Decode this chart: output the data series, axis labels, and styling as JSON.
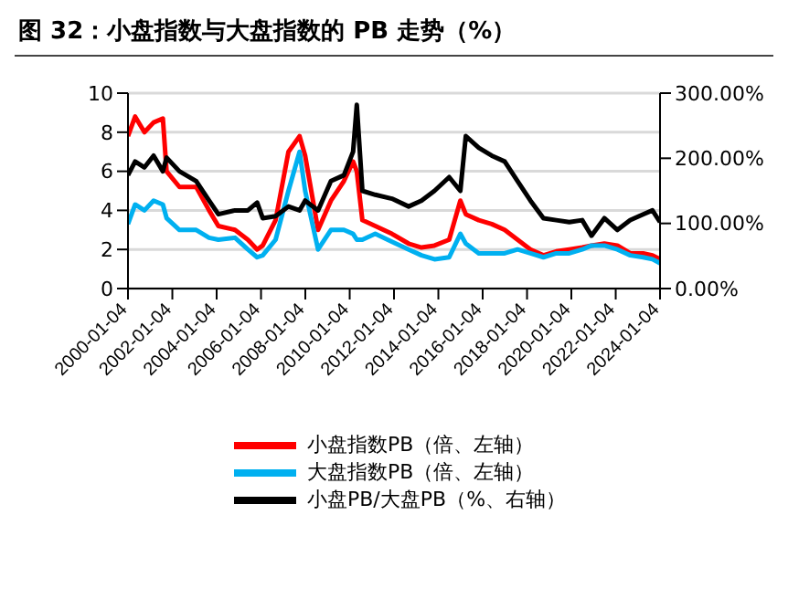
{
  "chart_data": {
    "type": "line",
    "title": "图 32：小盘指数与大盘指数的 PB 走势（%）",
    "x": [
      "2000-01-04",
      "2000-05",
      "2000-10",
      "2001-03",
      "2001-08",
      "2001-10",
      "2002-05",
      "2003-02",
      "2003-09",
      "2004-02",
      "2004-11",
      "2005-06",
      "2005-11",
      "2006-02",
      "2006-09",
      "2007-04",
      "2007-10",
      "2008-01",
      "2008-08",
      "2009-03",
      "2009-10",
      "2010-03",
      "2010-05",
      "2010-08",
      "2011-03",
      "2011-12",
      "2012-09",
      "2013-04",
      "2013-11",
      "2014-07",
      "2015-01",
      "2015-04",
      "2015-11",
      "2016-06",
      "2017-01",
      "2017-08",
      "2018-03",
      "2018-10",
      "2019-05",
      "2019-12",
      "2020-07",
      "2020-12",
      "2021-07",
      "2022-02",
      "2022-09",
      "2023-04",
      "2023-09",
      "2024-01-04"
    ],
    "series": [
      {
        "name": "小盘指数PB（倍、左轴）",
        "color": "#ff0000",
        "values": [
          7.8,
          8.8,
          8.0,
          8.5,
          8.7,
          6.0,
          5.2,
          5.2,
          4.0,
          3.2,
          3.0,
          2.5,
          2.0,
          2.2,
          3.5,
          7.0,
          7.8,
          6.8,
          3.0,
          4.5,
          5.5,
          6.5,
          6.0,
          3.5,
          3.2,
          2.8,
          2.3,
          2.1,
          2.2,
          2.5,
          4.5,
          3.8,
          3.5,
          3.3,
          3.0,
          2.5,
          2.0,
          1.7,
          1.9,
          2.0,
          2.1,
          2.2,
          2.3,
          2.2,
          1.8,
          1.8,
          1.7,
          1.5
        ]
      },
      {
        "name": "大盘指数PB（倍、左轴）",
        "color": "#00b0f0",
        "values": [
          3.3,
          4.3,
          4.0,
          4.5,
          4.3,
          3.6,
          3.0,
          3.0,
          2.6,
          2.5,
          2.6,
          2.0,
          1.6,
          1.7,
          2.5,
          5.0,
          7.0,
          5.0,
          2.0,
          3.0,
          3.0,
          2.8,
          2.5,
          2.5,
          2.8,
          2.4,
          2.0,
          1.7,
          1.5,
          1.6,
          2.8,
          2.3,
          1.8,
          1.8,
          1.8,
          2.0,
          1.8,
          1.6,
          1.8,
          1.8,
          2.0,
          2.2,
          2.2,
          2.0,
          1.7,
          1.6,
          1.5,
          1.3
        ]
      },
      {
        "name": "小盘PB/大盘PB（%、右轴）",
        "color": "#000000",
        "axis": "y2",
        "values": [
          174,
          195,
          186,
          204,
          180,
          201,
          180,
          165,
          135,
          114,
          120,
          120,
          132,
          108,
          111,
          126,
          120,
          135,
          120,
          165,
          174,
          210,
          282,
          150,
          144,
          138,
          126,
          135,
          150,
          171,
          150,
          234,
          216,
          204,
          195,
          165,
          135,
          108,
          105,
          102,
          105,
          81,
          108,
          90,
          105,
          114,
          120,
          102
        ]
      }
    ],
    "xlim": [
      "2000-01-04",
      "2024-01-04"
    ],
    "xticks": [
      "2000-01-04",
      "2002-01-04",
      "2004-01-04",
      "2006-01-04",
      "2008-01-04",
      "2010-01-04",
      "2012-01-04",
      "2014-01-04",
      "2016-01-04",
      "2018-01-04",
      "2020-01-04",
      "2022-01-04",
      "2024-01-04"
    ],
    "ylim": [
      0,
      10
    ],
    "yticks": [
      0,
      2,
      4,
      6,
      8,
      10
    ],
    "y2lim": [
      0,
      300
    ],
    "y2ticks": [
      {
        "value": 0,
        "label": "0.00%"
      },
      {
        "value": 100,
        "label": "100.00%"
      },
      {
        "value": 200,
        "label": "200.00%"
      },
      {
        "value": 300,
        "label": "300.00%"
      }
    ],
    "grid": "y",
    "legend": "bottom",
    "marker": "none",
    "line_style": "solid"
  }
}
